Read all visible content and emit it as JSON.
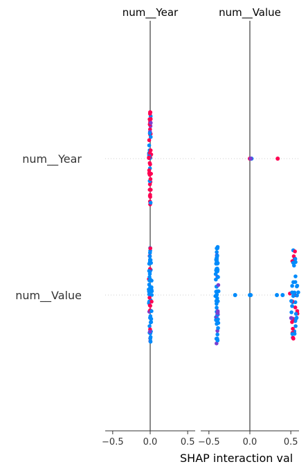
{
  "chart_data": {
    "type": "scatter",
    "xlabel": "SHAP interaction val",
    "features": [
      "num__Year",
      "num__Value"
    ],
    "xlim": [
      -0.6,
      0.6
    ],
    "xticks": [
      -0.5,
      0.0,
      0.5
    ],
    "xtick_labels": [
      "−0.5",
      "0.0",
      "0.5"
    ],
    "colors": {
      "low": "#008bfb",
      "high": "#ff0052",
      "mid": "#7b3fd0"
    },
    "panels": [
      {
        "title": "num__Year",
        "clusters": [
          {
            "row": "num__Year",
            "x": 0.0,
            "spread": 0.02,
            "extent": 68,
            "count": 55,
            "high_frac": 0.65
          },
          {
            "row": "num__Value",
            "x": 0.0,
            "spread": 0.025,
            "extent": 68,
            "count": 60,
            "high_frac": 0.15
          }
        ],
        "points": []
      },
      {
        "title": "num__Value",
        "clusters": [
          {
            "row": "num__Value",
            "x": -0.4,
            "spread": 0.025,
            "extent": 70,
            "count": 70,
            "high_frac": 0.0
          },
          {
            "row": "num__Value",
            "x": 0.54,
            "spread": 0.06,
            "extent": 65,
            "count": 55,
            "high_frac": 0.3
          }
        ],
        "points": [
          {
            "row": "num__Year",
            "x": 0.0,
            "v": "high"
          },
          {
            "row": "num__Year",
            "x": 0.02,
            "v": "low"
          },
          {
            "row": "num__Year",
            "x": 0.01,
            "v": "mid"
          },
          {
            "row": "num__Year",
            "x": 0.34,
            "v": "high"
          },
          {
            "row": "num__Value",
            "x": -0.18,
            "v": "low"
          },
          {
            "row": "num__Value",
            "x": 0.0,
            "v": "low"
          },
          {
            "row": "num__Value",
            "x": 0.01,
            "v": "low"
          },
          {
            "row": "num__Value",
            "x": 0.33,
            "v": "low"
          },
          {
            "row": "num__Value",
            "x": 0.4,
            "v": "low"
          }
        ]
      }
    ]
  }
}
